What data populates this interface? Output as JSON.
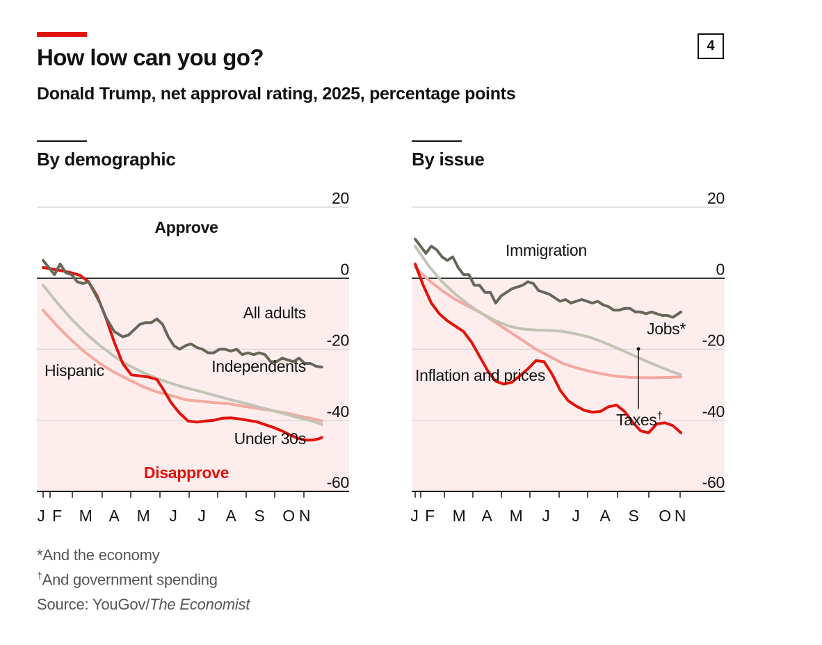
{
  "header": {
    "title": "How low can you go?",
    "subtitle": "Donald Trump, net approval rating, 2025, percentage points",
    "badge": "4"
  },
  "footer": {
    "note1": "*And the economy",
    "note2_mark": "†",
    "note2_text": "And government spending",
    "source_prefix": "Source: YouGov/",
    "source_italic": "The Economist"
  },
  "colors": {
    "bg_negative": "#fdeeed",
    "grid": "#d9d9d9",
    "zero": "#121212",
    "red": "#e3120b",
    "grey": "#c3c3b5",
    "pink": "#f4a89f",
    "dark": "#676758"
  },
  "chart_data": [
    {
      "type": "line",
      "title": "By demographic",
      "ylim": [
        -60,
        20
      ],
      "yticks": [
        20,
        0,
        -20,
        -40,
        -60
      ],
      "x_tick_labels": [
        "J",
        "F",
        "M",
        "A",
        "M",
        "J",
        "J",
        "A",
        "S",
        "O",
        "N"
      ],
      "annotations": {
        "approve": "Approve",
        "disapprove": "Disapprove"
      },
      "series": [
        {
          "name": "Hispanic",
          "color": "#f4a89f",
          "width": 4,
          "x": [
            0,
            0.5,
            1,
            1.5,
            2,
            2.5,
            3,
            3.5,
            4,
            4.5,
            5,
            5.5,
            6,
            6.5,
            7,
            7.5,
            8,
            8.5,
            9,
            9.5,
            9.8
          ],
          "y": [
            -9,
            -13.5,
            -17.5,
            -21,
            -24,
            -26.5,
            -28.5,
            -30.5,
            -32,
            -33,
            -34.2,
            -34.6,
            -35,
            -35.3,
            -36,
            -36.6,
            -37.2,
            -37.9,
            -38.8,
            -39.6,
            -40.2
          ]
        },
        {
          "name": "Independents",
          "color": "#c3c3b5",
          "width": 4,
          "x": [
            0,
            0.5,
            1,
            1.5,
            2,
            2.5,
            3,
            3.5,
            4,
            4.5,
            5,
            5.5,
            6,
            6.5,
            7,
            7.5,
            8,
            8.5,
            9,
            9.5,
            9.8
          ],
          "y": [
            -2,
            -7,
            -11.5,
            -15.5,
            -19,
            -22,
            -24.5,
            -26.5,
            -28.2,
            -29.6,
            -30.8,
            -31.8,
            -32.9,
            -34,
            -35,
            -36.1,
            -37.1,
            -38.2,
            -39.3,
            -40.3,
            -41.2
          ]
        },
        {
          "name": "Under 30s",
          "color": "#e3120b",
          "width": 4,
          "x": [
            0,
            0.3,
            0.6,
            1,
            1.3,
            1.6,
            1.9,
            2.2,
            2.5,
            2.8,
            3.1,
            3.4,
            3.7,
            4,
            4.2,
            4.5,
            4.8,
            5.1,
            5.4,
            5.7,
            6,
            6.3,
            6.6,
            6.9,
            7.2,
            7.5,
            7.8,
            8.1,
            8.4,
            8.7,
            9,
            9.3,
            9.5,
            9.7,
            9.8
          ],
          "y": [
            3,
            2.6,
            2.2,
            1.5,
            0.8,
            -1,
            -5,
            -11,
            -18,
            -24,
            -27.2,
            -27.5,
            -27.8,
            -28.5,
            -31,
            -35,
            -38,
            -40.2,
            -40.5,
            -40.2,
            -40,
            -39.4,
            -39.3,
            -39.6,
            -40,
            -40.4,
            -41.2,
            -42,
            -43,
            -44.2,
            -45.2,
            -45.6,
            -45.5,
            -45.2,
            -44.8
          ]
        },
        {
          "name": "All adults",
          "color": "#676758",
          "width": 4,
          "x": [
            0,
            0.2,
            0.4,
            0.6,
            0.8,
            1,
            1.2,
            1.4,
            1.6,
            1.8,
            2,
            2.2,
            2.5,
            2.8,
            3,
            3.2,
            3.4,
            3.6,
            3.8,
            4,
            4.2,
            4.4,
            4.6,
            4.8,
            5,
            5.2,
            5.4,
            5.6,
            5.8,
            6,
            6.2,
            6.4,
            6.6,
            6.8,
            7,
            7.2,
            7.4,
            7.6,
            7.8,
            8,
            8.2,
            8.4,
            8.6,
            8.8,
            9,
            9.2,
            9.4,
            9.6,
            9.8
          ],
          "y": [
            5,
            3,
            1,
            4,
            1.5,
            1,
            -1,
            -1.5,
            -1,
            -4,
            -7,
            -11,
            -15,
            -16.5,
            -16,
            -14.5,
            -13,
            -12.5,
            -12.5,
            -11.5,
            -13,
            -16.5,
            -19,
            -20,
            -19,
            -18.5,
            -19.5,
            -20,
            -21,
            -21,
            -20,
            -20,
            -20.5,
            -20,
            -21.5,
            -21,
            -21.5,
            -21,
            -21.5,
            -23.5,
            -23.5,
            -22.5,
            -23,
            -23.5,
            -22.5,
            -24,
            -24,
            -24.8,
            -25
          ]
        }
      ],
      "labels": [
        {
          "name": "All adults",
          "color": "#121212"
        },
        {
          "name": "Independents",
          "color": "#121212"
        },
        {
          "name": "Hispanic",
          "color": "#121212"
        },
        {
          "name": "Under 30s",
          "color": "#121212"
        }
      ]
    },
    {
      "type": "line",
      "title": "By issue",
      "ylim": [
        -60,
        20
      ],
      "yticks": [
        20,
        0,
        -20,
        -40,
        -60
      ],
      "x_tick_labels": [
        "J",
        "F",
        "M",
        "A",
        "M",
        "J",
        "J",
        "A",
        "S",
        "O",
        "N"
      ],
      "series": [
        {
          "name": "Taxes†",
          "color": "#f4a89f",
          "width": 4,
          "x": [
            0,
            0.5,
            1,
            1.5,
            2,
            2.5,
            3,
            3.5,
            4,
            4.5,
            5,
            5.5,
            6,
            6.5,
            7,
            7.5,
            8,
            8.5,
            9,
            9.5,
            9.9
          ],
          "y": [
            3,
            -0.5,
            -3.5,
            -6,
            -8,
            -10,
            -12.5,
            -15,
            -17.5,
            -20,
            -22,
            -24,
            -25.2,
            -26.2,
            -27,
            -27.6,
            -27.9,
            -28,
            -28,
            -27.9,
            -27.8
          ]
        },
        {
          "name": "Jobs*",
          "color": "#c3c3b5",
          "width": 4,
          "x": [
            0,
            0.5,
            1,
            1.5,
            2,
            2.5,
            3,
            3.5,
            4,
            4.5,
            5,
            5.5,
            6,
            6.5,
            7,
            7.5,
            8,
            8.5,
            9,
            9.5,
            9.9
          ],
          "y": [
            9,
            3.5,
            -1,
            -4.5,
            -7.5,
            -10,
            -12,
            -13.5,
            -14.3,
            -14.6,
            -14.7,
            -15,
            -15.7,
            -16.6,
            -18,
            -19.6,
            -21.3,
            -23,
            -24.6,
            -26.1,
            -27.2
          ]
        },
        {
          "name": "Inflation and prices",
          "color": "#e3120b",
          "width": 4,
          "x": [
            0,
            0.3,
            0.6,
            0.9,
            1.2,
            1.5,
            1.8,
            2.1,
            2.4,
            2.7,
            3,
            3.3,
            3.6,
            3.9,
            4.2,
            4.5,
            4.8,
            5.1,
            5.4,
            5.7,
            6,
            6.3,
            6.6,
            6.9,
            7.2,
            7.5,
            7.8,
            8.1,
            8.4,
            8.7,
            9,
            9.3,
            9.6,
            9.9
          ],
          "y": [
            4,
            -2,
            -7,
            -10,
            -12,
            -13.5,
            -15,
            -18,
            -22,
            -26,
            -29,
            -29.8,
            -29.3,
            -27.5,
            -25.5,
            -23.2,
            -23.5,
            -27,
            -31.5,
            -34.5,
            -36,
            -37.2,
            -37.7,
            -37.5,
            -36.2,
            -35.7,
            -37.5,
            -40.5,
            -43,
            -43.5,
            -41,
            -40.7,
            -41.5,
            -43.5
          ]
        },
        {
          "name": "Immigration",
          "color": "#676758",
          "width": 4,
          "x": [
            0,
            0.2,
            0.4,
            0.6,
            0.8,
            1,
            1.2,
            1.4,
            1.6,
            1.8,
            2,
            2.2,
            2.4,
            2.6,
            2.8,
            3,
            3.2,
            3.4,
            3.6,
            3.8,
            4,
            4.2,
            4.4,
            4.6,
            4.8,
            5,
            5.2,
            5.4,
            5.6,
            5.8,
            6,
            6.2,
            6.4,
            6.6,
            6.8,
            7,
            7.2,
            7.4,
            7.6,
            7.8,
            8,
            8.2,
            8.4,
            8.6,
            8.8,
            9,
            9.2,
            9.4,
            9.6,
            9.8,
            9.9
          ],
          "y": [
            11,
            9,
            7,
            9,
            8,
            6,
            5,
            6,
            3,
            1,
            1,
            -2,
            -2,
            -4,
            -4,
            -7,
            -5,
            -4,
            -3,
            -2.5,
            -2,
            -1,
            -1.5,
            -3.5,
            -4,
            -4.5,
            -5.5,
            -6.5,
            -6,
            -7,
            -6.5,
            -6,
            -6.5,
            -7,
            -6.5,
            -7.5,
            -8,
            -9,
            -9,
            -8.5,
            -8.5,
            -9.5,
            -9.5,
            -10,
            -9.5,
            -10,
            -10.5,
            -10.5,
            -11,
            -10,
            -9.5
          ]
        }
      ],
      "labels": [
        {
          "name": "Immigration",
          "color": "#121212"
        },
        {
          "name": "Jobs",
          "sup": "*",
          "color": "#121212"
        },
        {
          "name": "Inflation and prices",
          "color": "#121212"
        },
        {
          "name": "Taxes",
          "sup": "†",
          "color": "#121212"
        }
      ]
    }
  ]
}
